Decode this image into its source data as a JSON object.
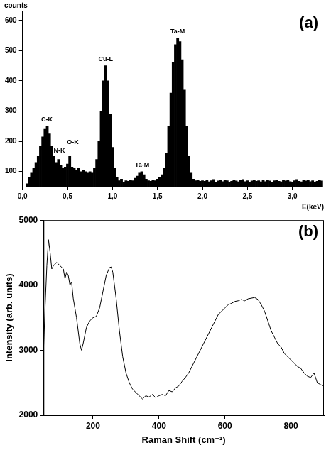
{
  "chart_data": [
    {
      "type": "bar",
      "title": "(a)",
      "x_label": "E(keV)",
      "y_label": "counts",
      "x": [
        0.05,
        0.075,
        0.1,
        0.125,
        0.15,
        0.175,
        0.2,
        0.225,
        0.25,
        0.275,
        0.3,
        0.325,
        0.35,
        0.375,
        0.4,
        0.425,
        0.45,
        0.475,
        0.5,
        0.525,
        0.55,
        0.575,
        0.6,
        0.625,
        0.65,
        0.675,
        0.7,
        0.725,
        0.75,
        0.775,
        0.8,
        0.825,
        0.85,
        0.875,
        0.9,
        0.925,
        0.95,
        0.975,
        1,
        1.025,
        1.05,
        1.075,
        1.1,
        1.125,
        1.15,
        1.175,
        1.2,
        1.225,
        1.25,
        1.275,
        1.3,
        1.325,
        1.35,
        1.375,
        1.4,
        1.425,
        1.45,
        1.475,
        1.5,
        1.525,
        1.55,
        1.575,
        1.6,
        1.625,
        1.65,
        1.675,
        1.7,
        1.725,
        1.75,
        1.775,
        1.8,
        1.825,
        1.85,
        1.875,
        1.9,
        1.925,
        1.95,
        1.975,
        2,
        2.025,
        2.05,
        2.075,
        2.1,
        2.125,
        2.15,
        2.175,
        2.2,
        2.225,
        2.25,
        2.275,
        2.3,
        2.325,
        2.35,
        2.375,
        2.4,
        2.425,
        2.45,
        2.475,
        2.5,
        2.525,
        2.55,
        2.575,
        2.6,
        2.625,
        2.65,
        2.675,
        2.7,
        2.725,
        2.75,
        2.775,
        2.8,
        2.825,
        2.85,
        2.875,
        2.9,
        2.925,
        2.95,
        2.975,
        3,
        3.025,
        3.05,
        3.075,
        3.1,
        3.125,
        3.15,
        3.175,
        3.2,
        3.225,
        3.25,
        3.275,
        3.3,
        3.325
      ],
      "values": [
        60,
        80,
        95,
        110,
        130,
        150,
        185,
        215,
        240,
        250,
        225,
        185,
        150,
        130,
        140,
        120,
        110,
        115,
        125,
        150,
        115,
        110,
        105,
        110,
        100,
        105,
        100,
        95,
        100,
        95,
        110,
        140,
        200,
        300,
        400,
        450,
        400,
        290,
        180,
        110,
        80,
        70,
        75,
        65,
        70,
        68,
        72,
        70,
        78,
        85,
        95,
        100,
        90,
        75,
        70,
        68,
        72,
        70,
        75,
        80,
        90,
        110,
        160,
        250,
        360,
        460,
        520,
        540,
        530,
        470,
        370,
        250,
        150,
        95,
        75,
        70,
        72,
        68,
        70,
        68,
        72,
        66,
        70,
        74,
        65,
        69,
        71,
        67,
        73,
        70,
        64,
        68,
        72,
        69,
        66,
        71,
        74,
        67,
        70,
        65,
        69,
        73,
        68,
        70,
        66,
        72,
        67,
        71,
        69,
        64,
        70,
        73,
        68,
        66,
        71,
        69,
        72,
        67,
        65,
        70,
        74,
        68,
        66,
        71,
        69,
        73,
        67,
        70,
        65,
        68,
        72,
        69
      ],
      "color": "#000000",
      "xlim": [
        0,
        3.35
      ],
      "xticks": [
        {
          "value": 0,
          "label": "0,0"
        },
        {
          "value": 0.5,
          "label": "0,5"
        },
        {
          "value": 1,
          "label": "1,0"
        },
        {
          "value": 1.5,
          "label": "1,5"
        },
        {
          "value": 2,
          "label": "2,0"
        },
        {
          "value": 2.5,
          "label": "2,5"
        },
        {
          "value": 3,
          "label": "3,0"
        }
      ],
      "ylim": [
        50,
        630
      ],
      "yticks": [
        100,
        200,
        300,
        400,
        500,
        600
      ],
      "grid": false,
      "annotations": [
        {
          "text": "C-K",
          "x": 0.27,
          "y": 262
        },
        {
          "text": "N-K",
          "x": 0.41,
          "y": 158
        },
        {
          "text": "O-K",
          "x": 0.56,
          "y": 185
        },
        {
          "text": "Cu-L",
          "x": 0.925,
          "y": 462
        },
        {
          "text": "Ta-M",
          "x": 1.33,
          "y": 112
        },
        {
          "text": "Ta-M",
          "x": 1.725,
          "y": 552
        }
      ]
    },
    {
      "type": "line",
      "title": "(b)",
      "x_label": "Raman Shift (cm⁻¹)",
      "y_label": "Intensity (arb. units)",
      "x": [
        50,
        55,
        60,
        65,
        70,
        75,
        80,
        90,
        100,
        110,
        115,
        120,
        125,
        130,
        135,
        140,
        150,
        160,
        165,
        170,
        180,
        190,
        200,
        210,
        220,
        230,
        240,
        250,
        255,
        260,
        270,
        280,
        290,
        300,
        310,
        320,
        330,
        340,
        350,
        360,
        370,
        380,
        390,
        400,
        410,
        420,
        430,
        440,
        450,
        460,
        470,
        480,
        490,
        500,
        510,
        520,
        530,
        540,
        550,
        560,
        570,
        580,
        590,
        600,
        610,
        620,
        630,
        640,
        650,
        660,
        670,
        680,
        690,
        700,
        710,
        720,
        730,
        740,
        750,
        760,
        770,
        780,
        790,
        800,
        810,
        820,
        830,
        840,
        850,
        860,
        870,
        880,
        890,
        900
      ],
      "values": [
        3000,
        3700,
        4300,
        4700,
        4500,
        4250,
        4300,
        4350,
        4300,
        4250,
        4100,
        4200,
        4150,
        4000,
        4050,
        3800,
        3500,
        3100,
        3000,
        3100,
        3350,
        3450,
        3500,
        3520,
        3650,
        3900,
        4150,
        4270,
        4280,
        4200,
        3800,
        3300,
        2900,
        2650,
        2500,
        2400,
        2350,
        2300,
        2250,
        2300,
        2280,
        2320,
        2270,
        2300,
        2320,
        2300,
        2380,
        2360,
        2420,
        2450,
        2520,
        2580,
        2650,
        2750,
        2850,
        2950,
        3050,
        3150,
        3250,
        3350,
        3450,
        3550,
        3600,
        3650,
        3700,
        3720,
        3750,
        3760,
        3780,
        3760,
        3790,
        3800,
        3810,
        3780,
        3700,
        3600,
        3450,
        3300,
        3200,
        3100,
        3050,
        2950,
        2900,
        2850,
        2800,
        2750,
        2720,
        2650,
        2600,
        2580,
        2650,
        2500,
        2470,
        2450
      ],
      "color": "#000000",
      "xlim": [
        50,
        900
      ],
      "xticks": [
        200,
        400,
        600,
        800
      ],
      "ylim": [
        2000,
        5000
      ],
      "yticks": [
        2000,
        3000,
        4000,
        5000
      ],
      "grid": false
    }
  ]
}
